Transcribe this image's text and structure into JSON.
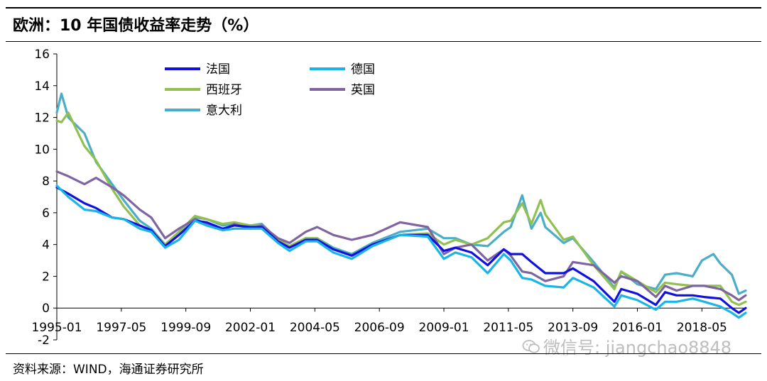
{
  "title": "欧洲：10 年国债收益率走势（%）",
  "source": "资料来源：WIND，海通证券研究所",
  "watermark": "微信号: jiangchao8848",
  "chart_data": {
    "type": "line",
    "title": "欧洲：10 年国债收益率走势（%）",
    "xlabel": "",
    "ylabel": "",
    "ylim": [
      -2,
      16
    ],
    "yticks": [
      -2,
      0,
      2,
      4,
      6,
      8,
      10,
      12,
      14,
      16
    ],
    "xlim": [
      "1995-01",
      "2019-12"
    ],
    "xticks": [
      "1995-01",
      "1997-05",
      "1999-09",
      "2002-01",
      "2004-05",
      "2006-09",
      "2009-01",
      "2011-05",
      "2013-09",
      "2016-01",
      "2018-05"
    ],
    "grid": false,
    "legend_position": "top-left",
    "series": [
      {
        "name": "法国",
        "color": "#1010e0",
        "points": [
          [
            "1995-01",
            7.6
          ],
          [
            "1995-06",
            7.2
          ],
          [
            "1996-01",
            6.6
          ],
          [
            "1996-06",
            6.3
          ],
          [
            "1997-01",
            5.7
          ],
          [
            "1997-06",
            5.6
          ],
          [
            "1998-01",
            5.2
          ],
          [
            "1998-06",
            4.9
          ],
          [
            "1998-12",
            3.9
          ],
          [
            "1999-06",
            4.6
          ],
          [
            "2000-01",
            5.5
          ],
          [
            "2000-06",
            5.4
          ],
          [
            "2001-01",
            5.0
          ],
          [
            "2001-06",
            5.2
          ],
          [
            "2002-01",
            5.1
          ],
          [
            "2002-06",
            5.1
          ],
          [
            "2003-01",
            4.2
          ],
          [
            "2003-06",
            3.8
          ],
          [
            "2004-01",
            4.3
          ],
          [
            "2004-06",
            4.3
          ],
          [
            "2005-01",
            3.7
          ],
          [
            "2005-09",
            3.3
          ],
          [
            "2006-06",
            4.0
          ],
          [
            "2007-06",
            4.6
          ],
          [
            "2008-06",
            4.6
          ],
          [
            "2009-01",
            3.6
          ],
          [
            "2009-06",
            3.8
          ],
          [
            "2010-01",
            3.5
          ],
          [
            "2010-08",
            2.7
          ],
          [
            "2011-03",
            3.7
          ],
          [
            "2011-06",
            3.4
          ],
          [
            "2011-11",
            3.4
          ],
          [
            "2012-03",
            2.9
          ],
          [
            "2012-09",
            2.2
          ],
          [
            "2013-05",
            2.2
          ],
          [
            "2013-09",
            2.5
          ],
          [
            "2014-06",
            1.7
          ],
          [
            "2015-03",
            0.4
          ],
          [
            "2015-06",
            1.2
          ],
          [
            "2016-01",
            0.9
          ],
          [
            "2016-09",
            0.2
          ],
          [
            "2017-01",
            1.0
          ],
          [
            "2017-06",
            0.8
          ],
          [
            "2018-01",
            0.8
          ],
          [
            "2018-06",
            0.7
          ],
          [
            "2019-01",
            0.6
          ],
          [
            "2019-06",
            0.0
          ],
          [
            "2019-09",
            -0.3
          ],
          [
            "2019-12",
            0.0
          ]
        ]
      },
      {
        "name": "德国",
        "color": "#19b5e8",
        "points": [
          [
            "1995-01",
            7.7
          ],
          [
            "1995-06",
            7.0
          ],
          [
            "1996-01",
            6.2
          ],
          [
            "1996-06",
            6.1
          ],
          [
            "1997-01",
            5.7
          ],
          [
            "1997-06",
            5.6
          ],
          [
            "1998-01",
            5.0
          ],
          [
            "1998-06",
            4.8
          ],
          [
            "1998-12",
            3.8
          ],
          [
            "1999-06",
            4.3
          ],
          [
            "2000-01",
            5.5
          ],
          [
            "2000-06",
            5.2
          ],
          [
            "2001-01",
            4.9
          ],
          [
            "2001-06",
            5.0
          ],
          [
            "2002-01",
            5.0
          ],
          [
            "2002-06",
            5.0
          ],
          [
            "2003-01",
            4.1
          ],
          [
            "2003-06",
            3.6
          ],
          [
            "2004-01",
            4.2
          ],
          [
            "2004-06",
            4.2
          ],
          [
            "2005-01",
            3.5
          ],
          [
            "2005-09",
            3.1
          ],
          [
            "2006-06",
            3.9
          ],
          [
            "2007-06",
            4.6
          ],
          [
            "2008-06",
            4.5
          ],
          [
            "2009-01",
            3.1
          ],
          [
            "2009-06",
            3.5
          ],
          [
            "2010-01",
            3.2
          ],
          [
            "2010-08",
            2.2
          ],
          [
            "2011-03",
            3.4
          ],
          [
            "2011-06",
            3.0
          ],
          [
            "2011-11",
            1.9
          ],
          [
            "2012-03",
            1.8
          ],
          [
            "2012-09",
            1.4
          ],
          [
            "2013-05",
            1.3
          ],
          [
            "2013-09",
            1.9
          ],
          [
            "2014-06",
            1.3
          ],
          [
            "2015-03",
            0.1
          ],
          [
            "2015-06",
            0.8
          ],
          [
            "2016-01",
            0.5
          ],
          [
            "2016-09",
            -0.1
          ],
          [
            "2017-01",
            0.4
          ],
          [
            "2017-06",
            0.4
          ],
          [
            "2018-01",
            0.6
          ],
          [
            "2018-06",
            0.4
          ],
          [
            "2019-01",
            0.1
          ],
          [
            "2019-06",
            -0.3
          ],
          [
            "2019-09",
            -0.6
          ],
          [
            "2019-12",
            -0.3
          ]
        ]
      },
      {
        "name": "西班牙",
        "color": "#92c050",
        "points": [
          [
            "1995-01",
            11.8
          ],
          [
            "1995-03",
            11.7
          ],
          [
            "1995-06",
            12.3
          ],
          [
            "1996-01",
            10.2
          ],
          [
            "1996-06",
            9.3
          ],
          [
            "1997-01",
            7.5
          ],
          [
            "1997-06",
            6.4
          ],
          [
            "1998-01",
            5.2
          ],
          [
            "1998-06",
            4.9
          ],
          [
            "1998-12",
            4.0
          ],
          [
            "1999-06",
            4.8
          ],
          [
            "2000-01",
            5.8
          ],
          [
            "2000-06",
            5.6
          ],
          [
            "2001-01",
            5.3
          ],
          [
            "2001-06",
            5.4
          ],
          [
            "2002-01",
            5.2
          ],
          [
            "2002-06",
            5.2
          ],
          [
            "2003-01",
            4.3
          ],
          [
            "2003-06",
            3.9
          ],
          [
            "2004-01",
            4.4
          ],
          [
            "2004-06",
            4.4
          ],
          [
            "2005-01",
            3.7
          ],
          [
            "2005-09",
            3.3
          ],
          [
            "2006-06",
            4.0
          ],
          [
            "2007-06",
            4.6
          ],
          [
            "2008-06",
            4.7
          ],
          [
            "2009-01",
            4.0
          ],
          [
            "2009-06",
            4.3
          ],
          [
            "2010-01",
            4.0
          ],
          [
            "2010-08",
            4.4
          ],
          [
            "2011-03",
            5.4
          ],
          [
            "2011-06",
            5.5
          ],
          [
            "2011-11",
            6.6
          ],
          [
            "2012-03",
            5.3
          ],
          [
            "2012-07",
            6.8
          ],
          [
            "2012-09",
            5.9
          ],
          [
            "2013-05",
            4.3
          ],
          [
            "2013-09",
            4.5
          ],
          [
            "2014-06",
            2.7
          ],
          [
            "2015-03",
            1.2
          ],
          [
            "2015-06",
            2.3
          ],
          [
            "2016-01",
            1.7
          ],
          [
            "2016-09",
            1.0
          ],
          [
            "2017-01",
            1.6
          ],
          [
            "2017-06",
            1.5
          ],
          [
            "2018-01",
            1.4
          ],
          [
            "2018-06",
            1.4
          ],
          [
            "2019-01",
            1.4
          ],
          [
            "2019-06",
            0.4
          ],
          [
            "2019-09",
            0.2
          ],
          [
            "2019-12",
            0.4
          ]
        ]
      },
      {
        "name": "英国",
        "color": "#8064a2",
        "points": [
          [
            "1995-01",
            8.6
          ],
          [
            "1995-06",
            8.3
          ],
          [
            "1996-01",
            7.8
          ],
          [
            "1996-06",
            8.2
          ],
          [
            "1997-01",
            7.6
          ],
          [
            "1997-06",
            7.1
          ],
          [
            "1998-01",
            6.2
          ],
          [
            "1998-06",
            5.7
          ],
          [
            "1998-12",
            4.4
          ],
          [
            "1999-06",
            5.0
          ],
          [
            "2000-01",
            5.6
          ],
          [
            "2000-06",
            5.3
          ],
          [
            "2001-01",
            4.9
          ],
          [
            "2001-06",
            5.3
          ],
          [
            "2002-01",
            5.0
          ],
          [
            "2002-06",
            5.2
          ],
          [
            "2003-01",
            4.4
          ],
          [
            "2003-06",
            4.1
          ],
          [
            "2004-01",
            4.8
          ],
          [
            "2004-06",
            5.1
          ],
          [
            "2005-01",
            4.6
          ],
          [
            "2005-09",
            4.3
          ],
          [
            "2006-06",
            4.6
          ],
          [
            "2007-06",
            5.4
          ],
          [
            "2008-06",
            5.1
          ],
          [
            "2009-01",
            3.4
          ],
          [
            "2009-06",
            3.8
          ],
          [
            "2010-01",
            4.0
          ],
          [
            "2010-08",
            3.0
          ],
          [
            "2011-03",
            3.7
          ],
          [
            "2011-06",
            3.3
          ],
          [
            "2011-11",
            2.3
          ],
          [
            "2012-03",
            2.2
          ],
          [
            "2012-09",
            1.7
          ],
          [
            "2013-05",
            2.0
          ],
          [
            "2013-09",
            2.9
          ],
          [
            "2014-06",
            2.7
          ],
          [
            "2015-03",
            1.6
          ],
          [
            "2015-06",
            2.0
          ],
          [
            "2016-01",
            1.7
          ],
          [
            "2016-09",
            0.7
          ],
          [
            "2017-01",
            1.4
          ],
          [
            "2017-06",
            1.1
          ],
          [
            "2018-01",
            1.4
          ],
          [
            "2018-06",
            1.4
          ],
          [
            "2019-01",
            1.2
          ],
          [
            "2019-06",
            0.8
          ],
          [
            "2019-09",
            0.5
          ],
          [
            "2019-12",
            0.8
          ]
        ]
      },
      {
        "name": "意大利",
        "color": "#4badc6",
        "points": [
          [
            "1995-01",
            12.3
          ],
          [
            "1995-03",
            13.5
          ],
          [
            "1995-06",
            12.0
          ],
          [
            "1996-01",
            11.0
          ],
          [
            "1996-06",
            9.2
          ],
          [
            "1997-01",
            7.8
          ],
          [
            "1997-06",
            6.8
          ],
          [
            "1998-01",
            5.5
          ],
          [
            "1998-06",
            5.0
          ],
          [
            "1998-12",
            4.0
          ],
          [
            "1999-06",
            4.7
          ],
          [
            "2000-01",
            5.7
          ],
          [
            "2000-06",
            5.6
          ],
          [
            "2001-01",
            5.2
          ],
          [
            "2001-06",
            5.3
          ],
          [
            "2002-01",
            5.2
          ],
          [
            "2002-06",
            5.3
          ],
          [
            "2003-01",
            4.3
          ],
          [
            "2003-06",
            3.9
          ],
          [
            "2004-01",
            4.4
          ],
          [
            "2004-06",
            4.4
          ],
          [
            "2005-01",
            3.8
          ],
          [
            "2005-09",
            3.4
          ],
          [
            "2006-06",
            4.1
          ],
          [
            "2007-06",
            4.8
          ],
          [
            "2008-06",
            5.0
          ],
          [
            "2009-01",
            4.4
          ],
          [
            "2009-06",
            4.4
          ],
          [
            "2010-01",
            4.0
          ],
          [
            "2010-08",
            3.9
          ],
          [
            "2011-03",
            4.8
          ],
          [
            "2011-06",
            5.1
          ],
          [
            "2011-11",
            7.1
          ],
          [
            "2012-03",
            5.0
          ],
          [
            "2012-07",
            6.0
          ],
          [
            "2012-09",
            5.1
          ],
          [
            "2013-05",
            4.1
          ],
          [
            "2013-09",
            4.4
          ],
          [
            "2014-06",
            2.9
          ],
          [
            "2015-03",
            1.3
          ],
          [
            "2015-06",
            2.3
          ],
          [
            "2016-01",
            1.5
          ],
          [
            "2016-09",
            1.2
          ],
          [
            "2017-01",
            2.1
          ],
          [
            "2017-06",
            2.2
          ],
          [
            "2018-01",
            2.0
          ],
          [
            "2018-05",
            3.0
          ],
          [
            "2018-10",
            3.4
          ],
          [
            "2019-01",
            2.8
          ],
          [
            "2019-06",
            2.1
          ],
          [
            "2019-09",
            0.9
          ],
          [
            "2019-12",
            1.1
          ]
        ]
      }
    ]
  }
}
